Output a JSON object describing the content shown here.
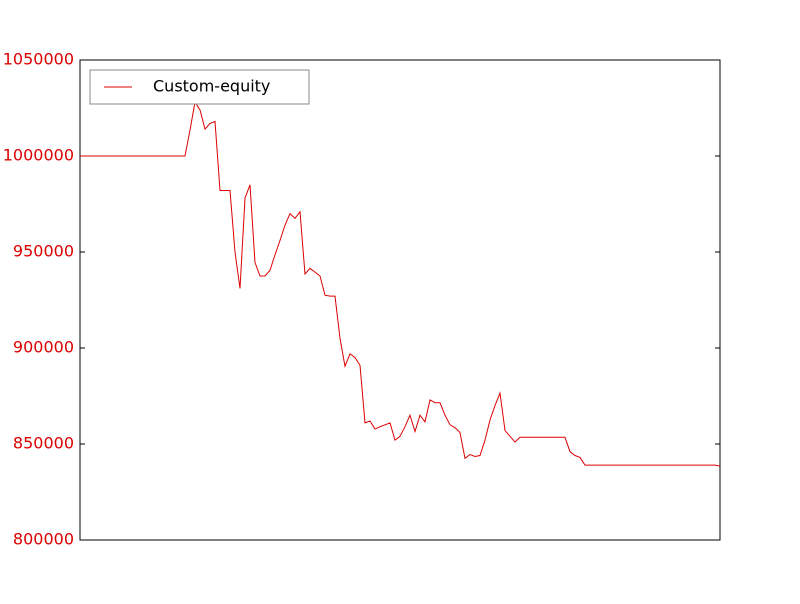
{
  "chart_data": {
    "type": "line",
    "series": [
      {
        "name": "Custom-equity",
        "color": "#dd0000",
        "values": [
          1000000,
          1000000,
          1000000,
          1000000,
          1000000,
          1000000,
          1000000,
          1000000,
          1000000,
          1000000,
          1000000,
          1000000,
          1000000,
          1000000,
          1000000,
          1000000,
          1000000,
          1000000,
          1000000,
          1000000,
          1000000,
          1000000,
          1013500,
          1028000,
          1024000,
          1014000,
          1017000,
          1018000,
          982000,
          982000,
          982000,
          950000,
          931000,
          978000,
          985000,
          944500,
          937500,
          937500,
          940500,
          948500,
          956000,
          964000,
          970000,
          967500,
          971000,
          938500,
          941500,
          939500,
          937500,
          927500,
          927000,
          927000,
          905000,
          890500,
          897000,
          895000,
          891000,
          861000,
          862000,
          857800,
          859000,
          860000,
          861000,
          852000,
          854000,
          859000,
          865000,
          856500,
          865000,
          861500,
          873000,
          871500,
          871500,
          865000,
          860000,
          858500,
          856000,
          842500,
          844500,
          843500,
          844000,
          852000,
          862500,
          870000,
          876500,
          857000,
          854000,
          851000,
          853500,
          853500,
          853500,
          853500,
          853500,
          853500,
          853500,
          853500,
          853500,
          853500,
          846000,
          844000,
          843000,
          839000,
          839000,
          839000,
          839000,
          839000,
          839000,
          839000,
          839000,
          839000,
          839000,
          839000,
          839000,
          839000,
          839000,
          839000,
          839000,
          839000,
          839000,
          839000,
          839000,
          839000,
          839000,
          839000,
          839000,
          839000,
          839000,
          839000,
          838500
        ]
      }
    ],
    "ylim": [
      800000,
      1050000
    ],
    "yticks": [
      800000,
      850000,
      900000,
      950000,
      1000000,
      1050000
    ],
    "tick_label_color": "#dd0000",
    "legend": "upper left"
  }
}
